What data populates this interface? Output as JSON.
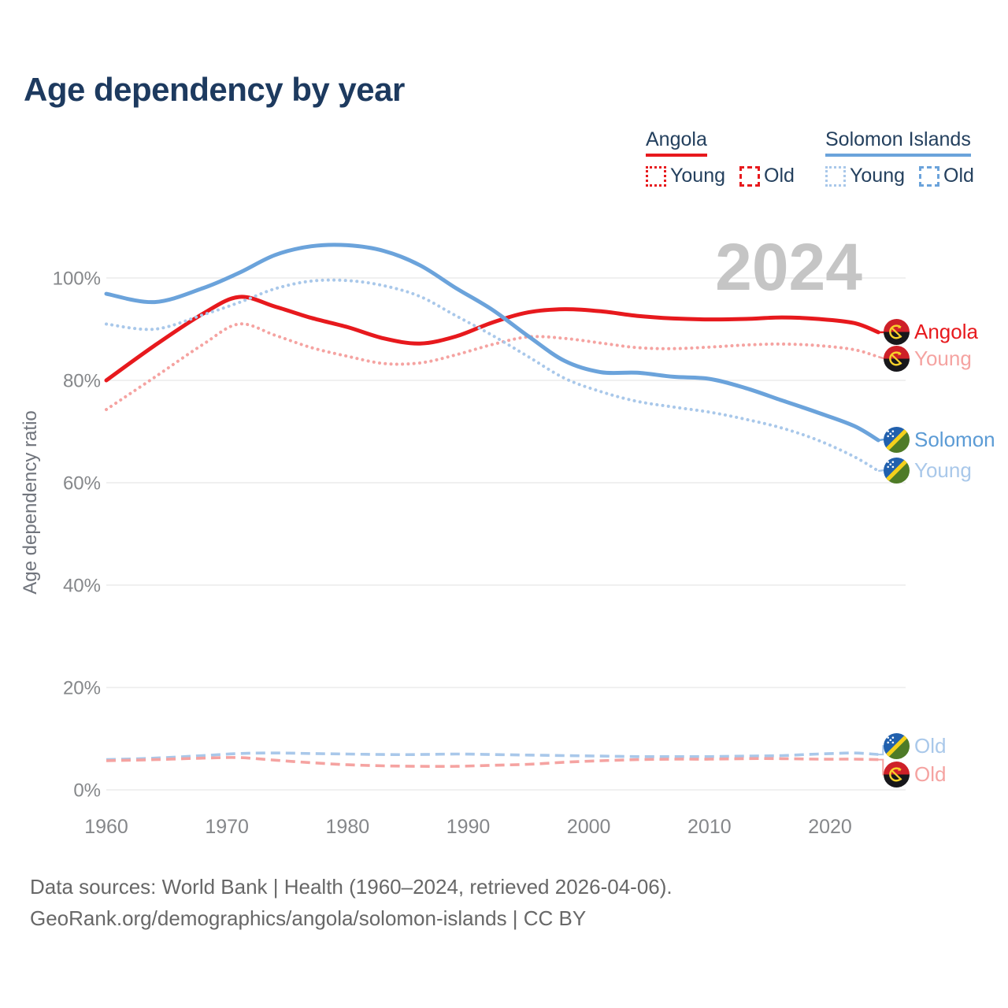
{
  "page_title": "Age dependency by year",
  "watermark": "2024",
  "colors": {
    "red": "#e7191d",
    "pink": "#f5a3a1",
    "blue": "#6ba3db",
    "light_blue": "#a9c8ea",
    "blue_text": "#5b9bd5",
    "navy": "#1d3a5f",
    "tick_gray": "#85878a",
    "grid_gray": "#e7e7e7",
    "watermark_gray": "#c5c5c5"
  },
  "legend": {
    "groups": [
      {
        "title": "Angola",
        "color_key": "red",
        "items": [
          {
            "label": "Young",
            "pattern": "dotted"
          },
          {
            "label": "Old",
            "pattern": "dashed"
          }
        ]
      },
      {
        "title": "Solomon Islands",
        "color_key": "blue",
        "items": [
          {
            "label": "Young",
            "pattern": "dotted"
          },
          {
            "label": "Old",
            "pattern": "dashed"
          }
        ]
      }
    ]
  },
  "chart_data": {
    "type": "line",
    "title": "Age dependency by year",
    "xlabel": "",
    "ylabel": "Age dependency ratio",
    "x_ticks": [
      "1960",
      "1970",
      "1980",
      "1990",
      "2000",
      "2010",
      "2020"
    ],
    "y_ticks": [
      "0%",
      "20%",
      "40%",
      "60%",
      "80%",
      "100%"
    ],
    "xlim": [
      1960,
      2024
    ],
    "ylim": [
      0,
      110
    ],
    "y_tick_step": 20,
    "grid": "horizontal",
    "legend_position": "top-right",
    "x": [
      1960,
      1964,
      1968,
      1971,
      1974,
      1977,
      1980,
      1983,
      1986,
      1989,
      1992,
      1995,
      1998,
      2001,
      2004,
      2007,
      2010,
      2013,
      2016,
      2019,
      2022,
      2024
    ],
    "series": [
      {
        "name": "Angola total",
        "country": "Angola",
        "measure": "total",
        "style": "solid",
        "color": "red",
        "values": [
          80.0,
          86.8,
          93.0,
          96.3,
          94.4,
          92.2,
          90.4,
          88.2,
          87.2,
          88.6,
          91.3,
          93.3,
          93.9,
          93.5,
          92.6,
          92.1,
          91.9,
          92.0,
          92.3,
          92.0,
          91.2,
          89.4
        ]
      },
      {
        "name": "Angola young",
        "country": "Angola",
        "measure": "young",
        "style": "dotted",
        "color": "pink",
        "values": [
          74.3,
          80.6,
          87.0,
          91.0,
          88.8,
          86.4,
          84.7,
          83.3,
          83.4,
          85.0,
          87.0,
          88.5,
          88.2,
          87.3,
          86.4,
          86.2,
          86.5,
          86.9,
          87.1,
          86.8,
          86.0,
          84.6
        ]
      },
      {
        "name": "Solomon Islands total",
        "country": "Solomon Islands",
        "measure": "total",
        "style": "solid",
        "color": "blue",
        "values": [
          96.9,
          95.3,
          98.0,
          101.0,
          104.5,
          106.2,
          106.4,
          105.3,
          102.5,
          98.0,
          93.8,
          88.6,
          83.8,
          81.6,
          81.5,
          80.7,
          80.3,
          78.5,
          76.1,
          73.7,
          71.1,
          68.3
        ]
      },
      {
        "name": "Solomon Islands young",
        "country": "Solomon Islands",
        "measure": "young",
        "style": "dotted",
        "color": "light_blue",
        "values": [
          91.0,
          90.0,
          92.8,
          95.2,
          97.9,
          99.4,
          99.5,
          98.5,
          96.4,
          92.6,
          88.8,
          84.6,
          80.4,
          77.8,
          75.9,
          74.8,
          73.8,
          72.4,
          70.7,
          68.3,
          65.1,
          62.3
        ]
      },
      {
        "name": "Solomon Islands old",
        "country": "Solomon Islands",
        "measure": "old",
        "style": "dashed",
        "color": "light_blue",
        "values": [
          5.9,
          6.2,
          6.7,
          7.1,
          7.2,
          7.1,
          7.0,
          6.9,
          6.9,
          7.0,
          6.9,
          6.8,
          6.7,
          6.6,
          6.5,
          6.5,
          6.5,
          6.6,
          6.7,
          7.0,
          7.2,
          6.9
        ]
      },
      {
        "name": "Angola old",
        "country": "Angola",
        "measure": "old",
        "style": "dashed",
        "color": "pink",
        "values": [
          5.7,
          5.9,
          6.2,
          6.3,
          5.8,
          5.3,
          4.9,
          4.7,
          4.6,
          4.6,
          4.8,
          5.0,
          5.4,
          5.7,
          5.9,
          6.0,
          6.0,
          6.1,
          6.1,
          6.0,
          6.0,
          5.9
        ]
      }
    ]
  },
  "end_labels": [
    {
      "text": "Angola",
      "color_key": "red",
      "flag": "angola"
    },
    {
      "text": "Young",
      "color_key": "pink",
      "flag": "angola"
    },
    {
      "text": "Solomon",
      "color_key": "blue_text",
      "flag": "solomon"
    },
    {
      "text": "Young",
      "color_key": "light_blue",
      "flag": "solomon"
    },
    {
      "text": "Old",
      "color_key": "light_blue",
      "flag": "solomon"
    },
    {
      "text": "Old",
      "color_key": "pink",
      "flag": "angola"
    }
  ],
  "footer": {
    "line1": "Data sources: World Bank | Health (1960–2024, retrieved 2026-04-06).",
    "line2": "GeoRank.org/demographics/angola/solomon-islands | CC BY"
  }
}
